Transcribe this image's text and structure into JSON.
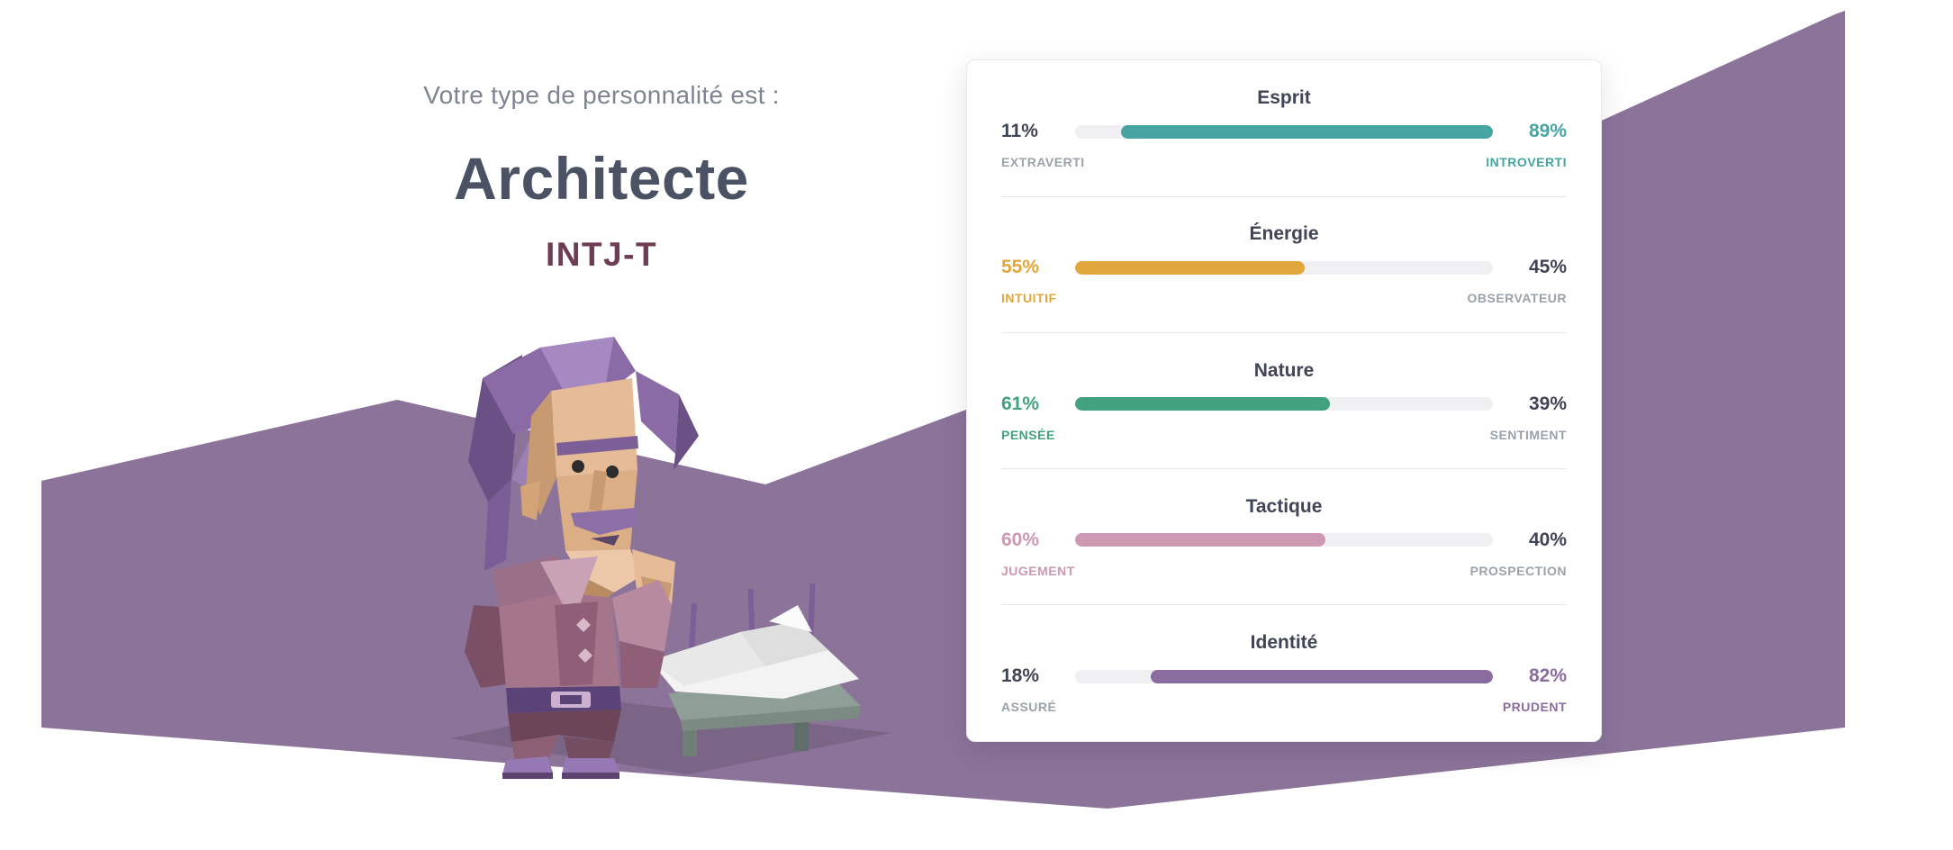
{
  "header": {
    "intro": "Votre type de personnalité est :",
    "type_name": "Architecte",
    "type_code": "INTJ-T"
  },
  "colors": {
    "background_mountain": "#8b7399",
    "ground_shadow": "#7d6689",
    "intro_text": "#7d8493",
    "type_name_text": "#4a5263",
    "type_code_text": "#6f3d53",
    "card_title_text": "#3f4456",
    "neutral_pct_text": "#3f4456",
    "neutral_label_text": "#9aa2ab",
    "bar_track": "#f0f0f2"
  },
  "traits_card": {
    "rows": [
      {
        "title": "Esprit",
        "left_pct": "11%",
        "right_pct": "89%",
        "left_label": "EXTRAVERTI",
        "right_label": "INTROVERTI",
        "dominant": "right",
        "value": 89,
        "color": "#46a4a3"
      },
      {
        "title": "Énergie",
        "left_pct": "55%",
        "right_pct": "45%",
        "left_label": "INTUITIF",
        "right_label": "OBSERVATEUR",
        "dominant": "left",
        "value": 55,
        "color": "#e1a73d"
      },
      {
        "title": "Nature",
        "left_pct": "61%",
        "right_pct": "39%",
        "left_label": "PENSÉE",
        "right_label": "SENTIMENT",
        "dominant": "left",
        "value": 61,
        "color": "#43a27e"
      },
      {
        "title": "Tactique",
        "left_pct": "60%",
        "right_pct": "40%",
        "left_label": "JUGEMENT",
        "right_label": "PROSPECTION",
        "dominant": "left",
        "value": 60,
        "color": "#cd98b2"
      },
      {
        "title": "Identité",
        "left_pct": "18%",
        "right_pct": "82%",
        "left_label": "ASSURÉ",
        "right_label": "PRUDENT",
        "dominant": "right",
        "value": 82,
        "color": "#8a6d9e"
      }
    ]
  }
}
